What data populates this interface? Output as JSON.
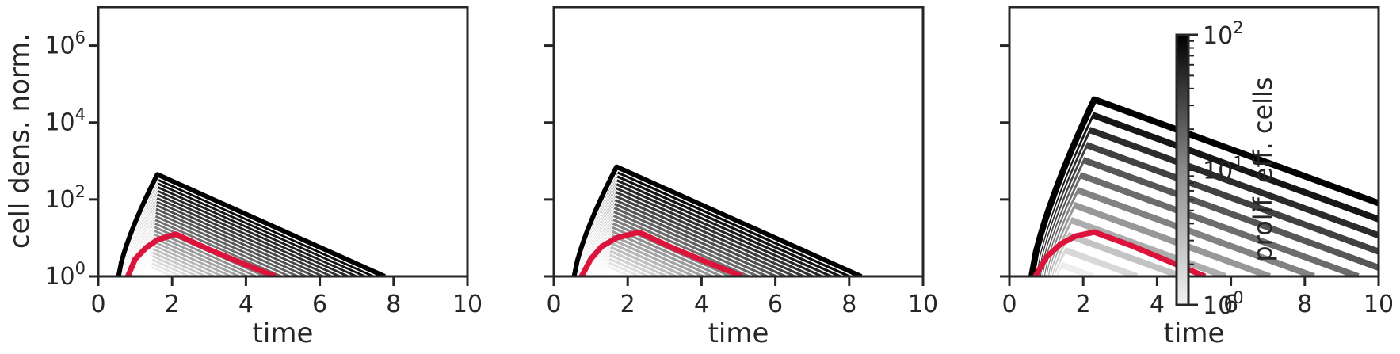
{
  "figure": {
    "ylabel": "cell dens. norm.",
    "xlabel": "time"
  },
  "colors": {
    "axis": "#262626",
    "highlight": "#dc143c",
    "line_dark": "#000000",
    "line_light": "#ffffff"
  },
  "chart_data": [
    {
      "type": "line",
      "panel": "left",
      "xlabel": "time",
      "ylabel": "cell dens. norm.",
      "xlim": [
        0,
        10
      ],
      "ylim_log10": [
        0,
        7
      ],
      "yscale": "log",
      "xticks": [
        "0",
        "2",
        "4",
        "6",
        "8",
        "10"
      ],
      "yticks": [
        {
          "base": "10",
          "exp": "0"
        },
        {
          "base": "10",
          "exp": "2"
        },
        {
          "base": "10",
          "exp": "4"
        },
        {
          "base": "10",
          "exp": "6"
        }
      ],
      "series_shape": {
        "start_x_min": 0.55,
        "start_x_max": 1.3,
        "peak_x_min": 1.4,
        "peak_x_max": 1.6,
        "peak_log10_min": 0.3,
        "peak_log10_max": 2.65,
        "decay_per_time": 0.43,
        "count": 26
      },
      "highlight": {
        "x": [
          0.8,
          1.0,
          1.3,
          1.6,
          2.1,
          3.0,
          4.0,
          4.8
        ],
        "log10_y": [
          0.0,
          0.45,
          0.75,
          0.95,
          1.1,
          0.7,
          0.3,
          0.0
        ]
      },
      "colorbar": null
    },
    {
      "type": "line",
      "panel": "middle",
      "xlabel": "time",
      "ylabel": "",
      "xlim": [
        0,
        10
      ],
      "ylim_log10": [
        0,
        7
      ],
      "yscale": "log",
      "xticks": [
        "0",
        "2",
        "4",
        "6",
        "8",
        "10"
      ],
      "yticks": [],
      "series_shape": {
        "start_x_min": 0.55,
        "start_x_max": 1.3,
        "peak_x_min": 1.45,
        "peak_x_max": 1.7,
        "peak_log10_min": 0.3,
        "peak_log10_max": 2.85,
        "decay_per_time": 0.43,
        "count": 26
      },
      "highlight": {
        "x": [
          0.75,
          1.0,
          1.3,
          1.7,
          2.3,
          3.2,
          4.2,
          5.1
        ],
        "log10_y": [
          0.0,
          0.45,
          0.78,
          1.0,
          1.15,
          0.75,
          0.35,
          0.0
        ]
      },
      "colorbar": null
    },
    {
      "type": "line",
      "panel": "right",
      "xlabel": "time",
      "ylabel": "",
      "xlim": [
        0,
        10
      ],
      "ylim_log10": [
        0,
        7
      ],
      "yscale": "log",
      "xticks": [
        "0",
        "2",
        "4",
        "6",
        "8",
        "10"
      ],
      "yticks": [],
      "series_shape": {
        "start_x_min": 0.6,
        "start_x_max": 1.2,
        "peak_x_min": 1.4,
        "peak_x_max": 2.3,
        "peak_log10_min": 0.3,
        "peak_log10_max": 4.6,
        "decay_per_time": 0.35,
        "count": 12
      },
      "highlight": {
        "x": [
          0.7,
          1.0,
          1.4,
          1.8,
          2.3,
          3.3,
          4.3,
          5.3
        ],
        "log10_y": [
          0.0,
          0.5,
          0.85,
          1.05,
          1.15,
          0.8,
          0.4,
          0.0
        ]
      },
      "colorbar": {
        "label": "prolif. eff. cells",
        "scale": "log",
        "min_log10": 0,
        "max_log10": 2,
        "ticks": [
          {
            "base": "10",
            "exp": "2"
          },
          {
            "base": "10",
            "exp": "1"
          },
          {
            "base": "10",
            "exp": "0"
          }
        ]
      }
    }
  ]
}
